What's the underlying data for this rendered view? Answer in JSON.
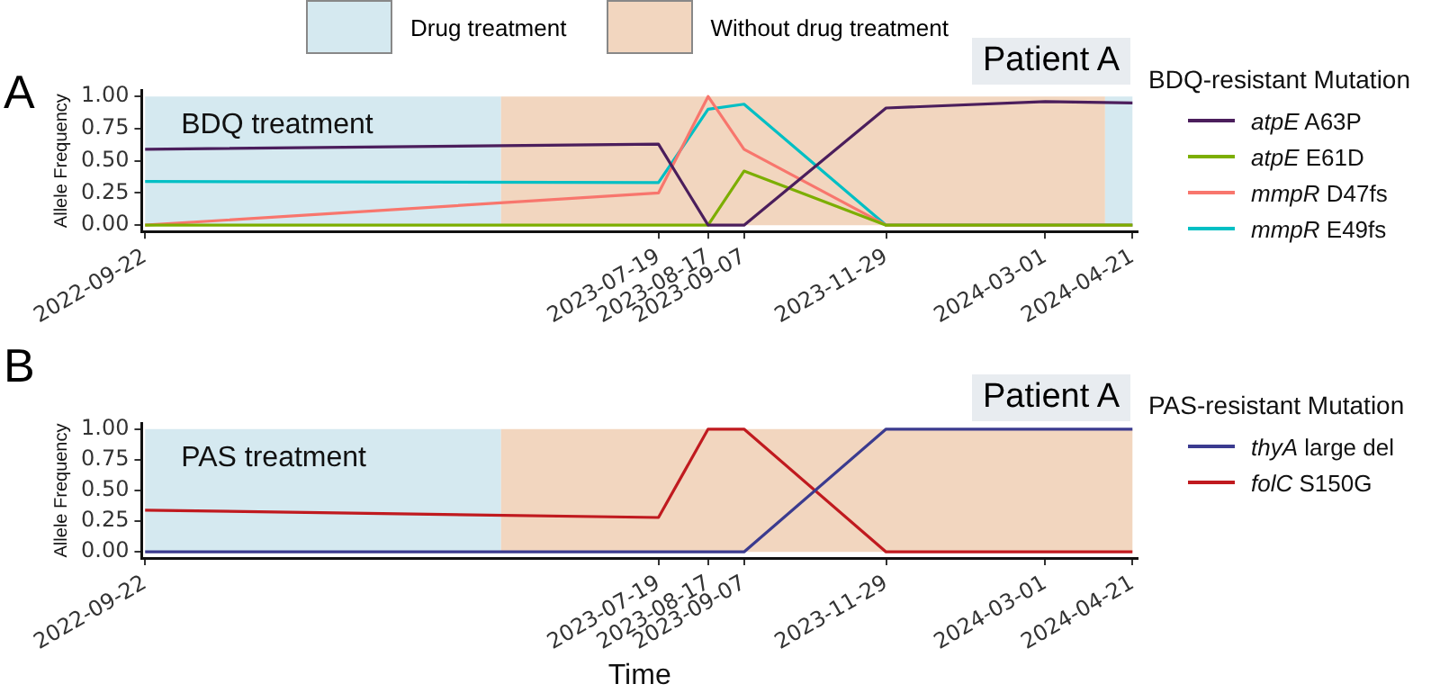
{
  "chart_data": [
    {
      "type": "line",
      "ylabel": "Allele Frequency",
      "legend_title": "BDQ-resistant Mutation",
      "legend": "right",
      "grid": false,
      "annotations": [
        "A",
        "Patient A",
        "Drug treatment",
        "Without drug treatment"
      ],
      "x": [
        "2022-09-22",
        "2023-07-19",
        "2023-08-17",
        "2023-09-07",
        "2023-11-29",
        "2024-03-01",
        "2024-04-21"
      ],
      "xlim": [
        "2022-09-20",
        "2024-04-24"
      ],
      "xticks": [
        "2022-09-22",
        "2023-07-19",
        "2023-08-17",
        "2023-09-07",
        "2023-11-29",
        "2024-03-01",
        "2024-04-21"
      ],
      "ylim": [
        -0.05,
        1.05
      ],
      "yticks": [
        {
          "value": 0,
          "label": "0.00"
        },
        {
          "value": 0.25,
          "label": "0.25"
        },
        {
          "value": 0.5,
          "label": "0.50"
        },
        {
          "value": 0.75,
          "label": "0.75"
        },
        {
          "value": 1,
          "label": "1.00"
        }
      ],
      "bands": [
        {
          "axis": "x",
          "from": "2022-09-22",
          "to": "2023-04-18",
          "label": "BDQ treatment",
          "color": "#d5e9f0"
        },
        {
          "axis": "x",
          "from": "2023-04-18",
          "to": "2024-04-05",
          "label": null,
          "color": "#f2d6bf"
        },
        {
          "axis": "x",
          "from": "2024-04-05",
          "to": "2024-04-21",
          "label": null,
          "color": "#d5e9f0"
        }
      ],
      "series": [
        {
          "name": "atpE A63P",
          "color": "#4b1e5c",
          "values": [
            0.59,
            0.63,
            0,
            0,
            0.91,
            0.96,
            0.95
          ]
        },
        {
          "name": "atpE E61D",
          "color": "#7cae00",
          "values": [
            0,
            0,
            0,
            0.42,
            0,
            0,
            0
          ]
        },
        {
          "name": "mmpR D47fs",
          "color": "#f8766d",
          "values": [
            0,
            0.25,
            1,
            0.59,
            0,
            0,
            0
          ]
        },
        {
          "name": "mmpR E49fs",
          "color": "#00bfc4",
          "values": [
            0.34,
            0.33,
            0.9,
            0.94,
            0,
            0,
            0
          ]
        }
      ]
    },
    {
      "type": "line",
      "xlabel": "Time",
      "ylabel": "Allele Frequency",
      "legend_title": "PAS-resistant Mutation",
      "legend": "right",
      "grid": false,
      "annotations": [
        "B",
        "Patient A"
      ],
      "x": [
        "2022-09-22",
        "2023-07-19",
        "2023-08-17",
        "2023-09-07",
        "2023-11-29",
        "2024-03-01",
        "2024-04-21"
      ],
      "xlim": [
        "2022-09-20",
        "2024-04-24"
      ],
      "xticks": [
        "2022-09-22",
        "2023-07-19",
        "2023-08-17",
        "2023-09-07",
        "2023-11-29",
        "2024-03-01",
        "2024-04-21"
      ],
      "ylim": [
        -0.05,
        1.05
      ],
      "yticks": [
        {
          "value": 0,
          "label": "0.00"
        },
        {
          "value": 0.25,
          "label": "0.25"
        },
        {
          "value": 0.5,
          "label": "0.50"
        },
        {
          "value": 0.75,
          "label": "0.75"
        },
        {
          "value": 1,
          "label": "1.00"
        }
      ],
      "bands": [
        {
          "axis": "x",
          "from": "2022-09-22",
          "to": "2023-04-18",
          "label": "PAS treatment",
          "color": "#d5e9f0"
        },
        {
          "axis": "x",
          "from": "2023-04-18",
          "to": "2024-04-21",
          "label": null,
          "color": "#f2d6bf"
        }
      ],
      "series": [
        {
          "name": "thyA large del",
          "color": "#3b3b8f",
          "values": [
            0,
            0,
            0,
            0,
            1,
            1,
            1
          ]
        },
        {
          "name": "folC S150G",
          "color": "#c01a1f",
          "values": [
            0.34,
            0.28,
            1,
            1,
            0,
            0,
            0
          ]
        }
      ]
    }
  ]
}
